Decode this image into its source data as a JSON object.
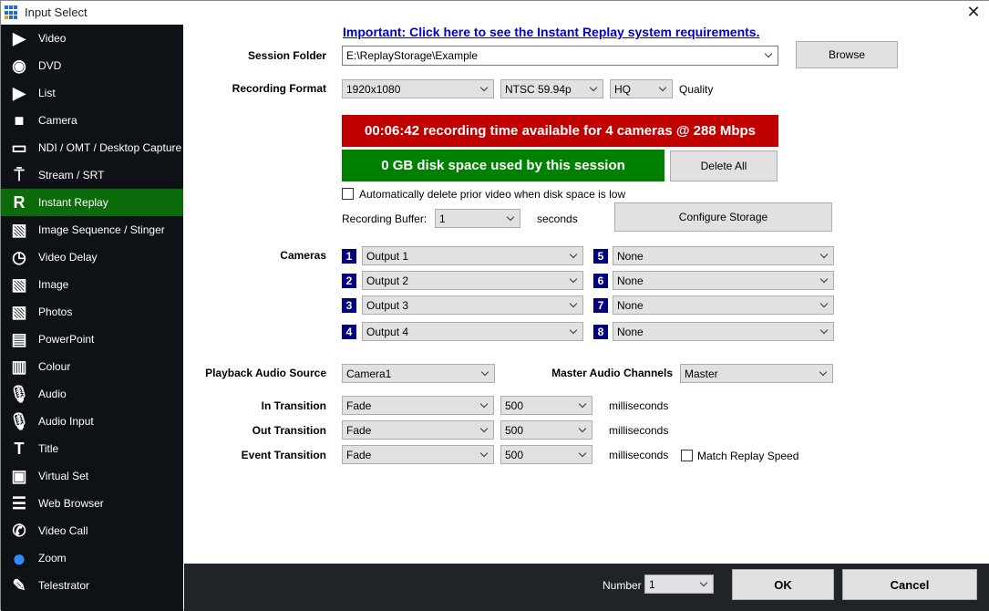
{
  "window": {
    "title": "Input Select",
    "close": "✕"
  },
  "sidebar": {
    "items": [
      {
        "label": "Video",
        "icon": "video-icon",
        "glyph": "▶"
      },
      {
        "label": "DVD",
        "icon": "disc-icon",
        "glyph": "◉"
      },
      {
        "label": "List",
        "icon": "list-icon",
        "glyph": "▶"
      },
      {
        "label": "Camera",
        "icon": "camera-icon",
        "glyph": "■"
      },
      {
        "label": "NDI / OMT / Desktop Capture",
        "icon": "monitor-icon",
        "glyph": "▭"
      },
      {
        "label": "Stream / SRT",
        "icon": "antenna-icon",
        "glyph": "⍑"
      },
      {
        "label": "Instant Replay",
        "icon": "replay-icon",
        "glyph": "R",
        "active": true
      },
      {
        "label": "Image Sequence / Stinger",
        "icon": "image-sequence-icon",
        "glyph": "▧"
      },
      {
        "label": "Video Delay",
        "icon": "clock-icon",
        "glyph": "◷"
      },
      {
        "label": "Image",
        "icon": "image-icon",
        "glyph": "▧"
      },
      {
        "label": "Photos",
        "icon": "photos-icon",
        "glyph": "▧"
      },
      {
        "label": "PowerPoint",
        "icon": "presentation-icon",
        "glyph": "▤"
      },
      {
        "label": "Colour",
        "icon": "colour-icon",
        "glyph": "▥"
      },
      {
        "label": "Audio",
        "icon": "microphone-icon",
        "glyph": "🎙"
      },
      {
        "label": "Audio Input",
        "icon": "microphone-icon",
        "glyph": "🎙"
      },
      {
        "label": "Title",
        "icon": "title-icon",
        "glyph": "T"
      },
      {
        "label": "Virtual Set",
        "icon": "virtual-set-icon",
        "glyph": "▣"
      },
      {
        "label": "Web Browser",
        "icon": "web-browser-icon",
        "glyph": "☰"
      },
      {
        "label": "Video Call",
        "icon": "video-call-icon",
        "glyph": "✆"
      },
      {
        "label": "Zoom",
        "icon": "zoom-icon",
        "glyph": "●"
      },
      {
        "label": "Telestrator",
        "icon": "telestrator-icon",
        "glyph": "✎"
      }
    ]
  },
  "main": {
    "requirements_link": "Important: Click here to see the Instant Replay system requirements.",
    "session_folder_label": "Session Folder",
    "session_folder": "E:\\ReplayStorage\\Example",
    "browse": "Browse",
    "recording_format_label": "Recording Format",
    "resolution": "1920x1080",
    "frame_rate": "NTSC 59.94p",
    "quality": "HQ",
    "quality_label": "Quality",
    "recording_time": "00:06:42 recording time available for 4 cameras @ 288 Mbps",
    "disk_used": "0 GB disk space used by this session",
    "delete_all": "Delete All",
    "auto_delete_label": "Automatically delete prior video when disk space is low",
    "buffer_label": "Recording Buffer:",
    "buffer": "1",
    "seconds": "seconds",
    "configure_storage": "Configure Storage",
    "cameras_label": "Cameras",
    "cameras": [
      {
        "n": "1",
        "v": "Output 1"
      },
      {
        "n": "2",
        "v": "Output 2"
      },
      {
        "n": "3",
        "v": "Output 3"
      },
      {
        "n": "4",
        "v": "Output 4"
      },
      {
        "n": "5",
        "v": "None"
      },
      {
        "n": "6",
        "v": "None"
      },
      {
        "n": "7",
        "v": "None"
      },
      {
        "n": "8",
        "v": "None"
      }
    ],
    "playback_audio_label": "Playback Audio Source",
    "playback_audio": "Camera1",
    "master_audio_label": "Master Audio Channels",
    "master_audio": "Master",
    "transitions": [
      {
        "label": "In Transition",
        "effect": "Fade",
        "duration": "500"
      },
      {
        "label": "Out Transition",
        "effect": "Fade",
        "duration": "500"
      },
      {
        "label": "Event Transition",
        "effect": "Fade",
        "duration": "500"
      }
    ],
    "milliseconds": "milliseconds",
    "match_replay_speed": "Match Replay Speed"
  },
  "footer": {
    "number_label": "Number",
    "number": "1",
    "ok": "OK",
    "cancel": "Cancel"
  },
  "colors": {
    "active": "#0b6b0b",
    "red": "#c00000",
    "green": "#008000",
    "navy": "#000080",
    "link": "#0000cc"
  }
}
